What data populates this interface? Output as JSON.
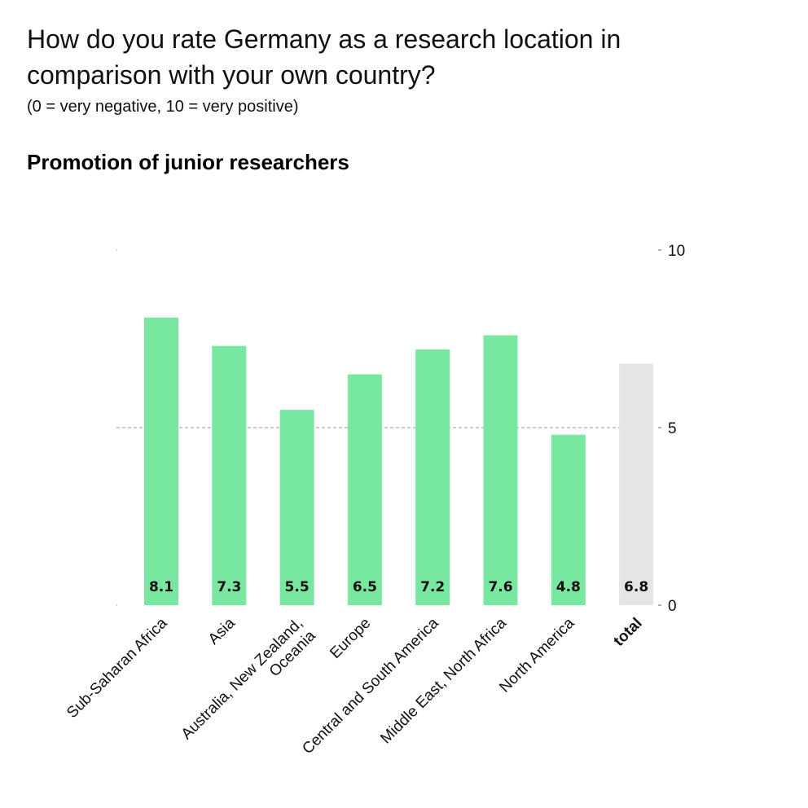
{
  "title": "How do you rate Germany as a research location in comparison with your own country?",
  "subtitle": "(0 = very negative, 10 = very positive)",
  "colors": {
    "bar": "#78e8a0",
    "total_bar": "#e5e5e5",
    "grid": "#999999"
  },
  "chart_data": {
    "type": "bar",
    "title": "Promotion of junior researchers",
    "categories": [
      "Sub-Saharan Africa",
      "Asia",
      "Australia, New Zealand, Oceania",
      "Europe",
      "Central and South America",
      "Middle East, North Africa",
      "North America",
      "total"
    ],
    "values": [
      8.1,
      7.3,
      5.5,
      6.5,
      7.2,
      7.6,
      4.8,
      6.8
    ],
    "value_labels": [
      "8.1",
      "7.3",
      "5.5",
      "6.5",
      "7.2",
      "7.6",
      "4.8",
      "6.8"
    ],
    "highlight": "total",
    "ylim": [
      0,
      10
    ],
    "yticks": [
      0,
      5,
      10
    ],
    "y_axis_position": "right",
    "grid": true
  }
}
